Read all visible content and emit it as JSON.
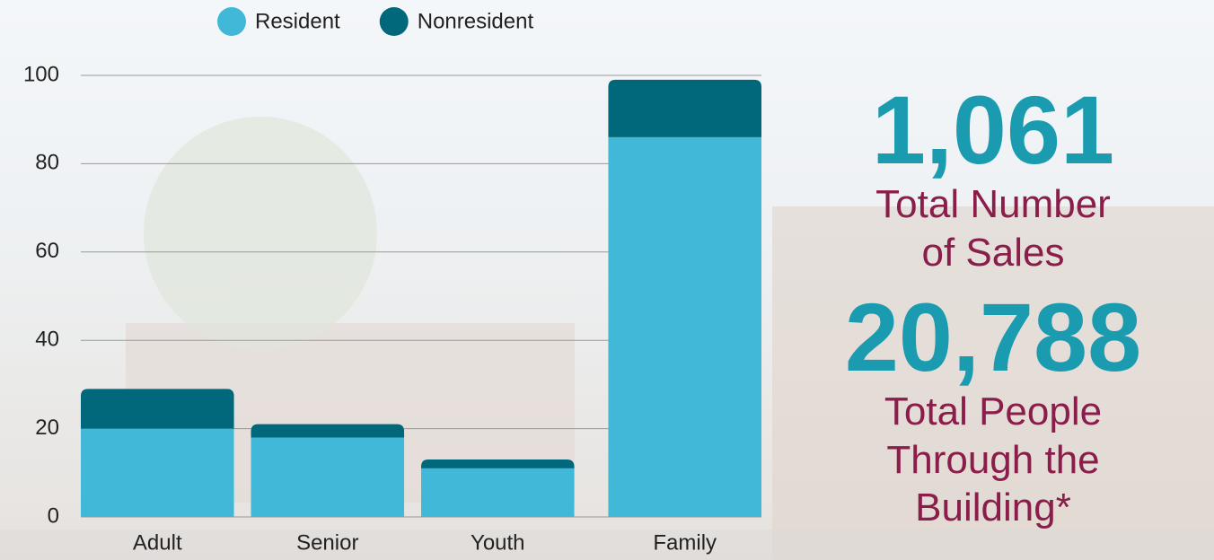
{
  "chart_data": {
    "type": "stacked_bar",
    "categories": [
      "Adult",
      "Senior",
      "Youth",
      "Family"
    ],
    "series": [
      {
        "name": "Resident",
        "color": "#42b8d8",
        "values": [
          20,
          18,
          11,
          86
        ]
      },
      {
        "name": "Nonresident",
        "color": "#00687a",
        "values": [
          9,
          3,
          2,
          13
        ]
      }
    ],
    "ylim": [
      0,
      100
    ],
    "yticks": [
      0,
      20,
      40,
      60,
      80,
      100
    ],
    "grid": true,
    "legend": "top"
  },
  "stats": [
    {
      "value": "1,061",
      "label": "Total Number of Sales"
    },
    {
      "value": "20,788",
      "label": "Total People Through the Building*"
    }
  ]
}
